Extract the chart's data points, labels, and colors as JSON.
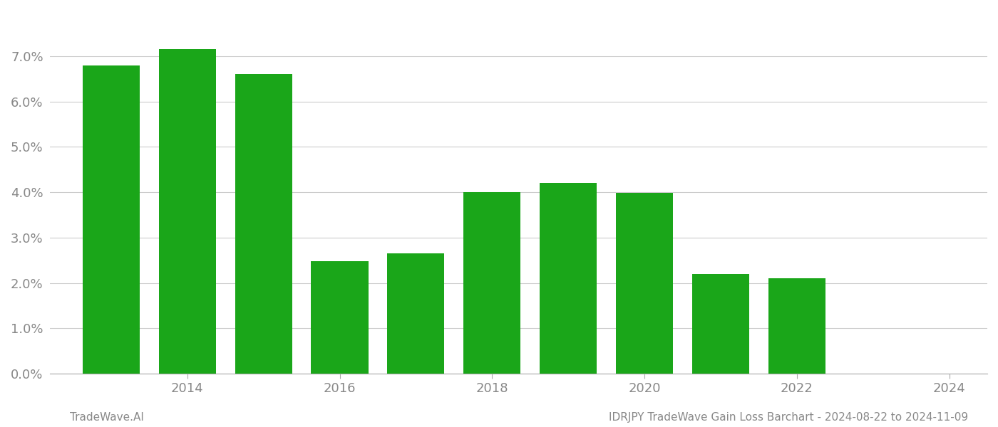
{
  "years": [
    2013,
    2014,
    2015,
    2016,
    2017,
    2018,
    2019,
    2020,
    2021,
    2022,
    2023
  ],
  "values": [
    0.068,
    0.0715,
    0.066,
    0.0248,
    0.0265,
    0.04,
    0.042,
    0.0398,
    0.022,
    0.021,
    0.0
  ],
  "bar_color": "#1aa619",
  "background_color": "#ffffff",
  "grid_color": "#cccccc",
  "xtick_labels": [
    "2014",
    "2016",
    "2018",
    "2020",
    "2022",
    "2024"
  ],
  "xtick_positions": [
    2014,
    2016,
    2018,
    2020,
    2022,
    2024
  ],
  "ylim": [
    0.0,
    0.08
  ],
  "ytick_values": [
    0.0,
    0.01,
    0.02,
    0.03,
    0.04,
    0.05,
    0.06,
    0.07
  ],
  "footer_left": "TradeWave.AI",
  "footer_right": "IDRJPY TradeWave Gain Loss Barchart - 2024-08-22 to 2024-11-09",
  "bar_width": 0.75,
  "xlim_left": 2012.2,
  "xlim_right": 2024.5
}
